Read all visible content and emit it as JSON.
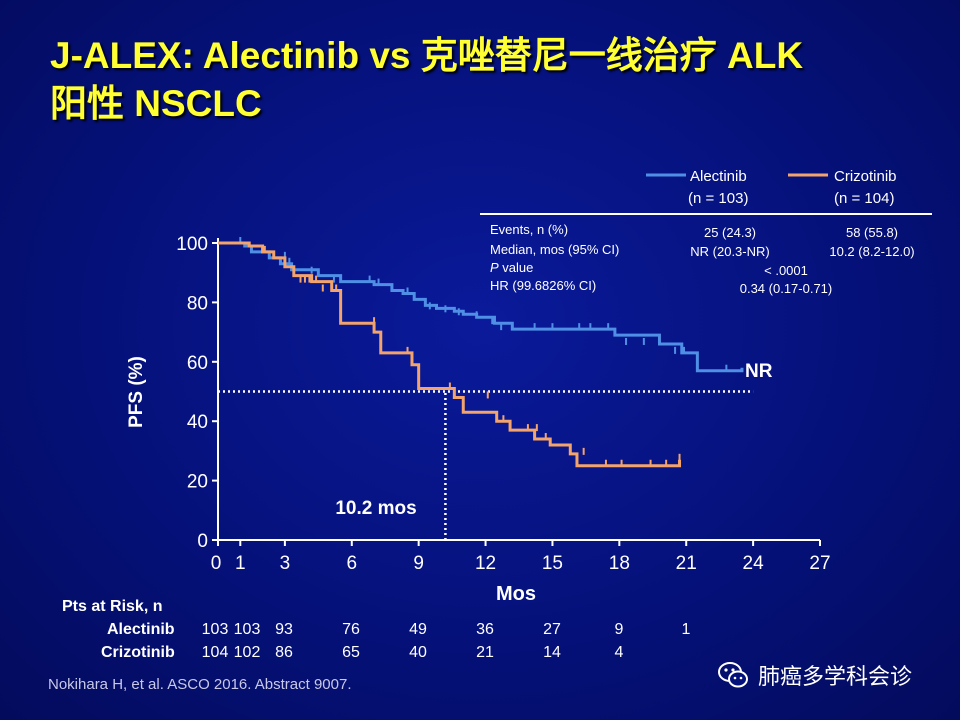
{
  "slide": {
    "title_line1": "J-ALEX: Alectinib vs 克唑替尼一线治疗 ALK",
    "title_line2": "阳性 NSCLC",
    "footer": "Nokihara H, et al. ASCO 2016. Abstract 9007.",
    "watermark": "肺癌多学科会诊",
    "watermark_icon": "wechat-icon"
  },
  "legend": {
    "alectinib": {
      "name": "Alectinib",
      "n": "(n = 103)"
    },
    "crizotinib": {
      "name": "Crizotinib",
      "n": "(n = 104)"
    }
  },
  "stats_table": {
    "rows": [
      {
        "label": "Events, n (%)",
        "alectinib": "25 (24.3)",
        "crizotinib": "58 (55.8)"
      },
      {
        "label": "Median, mos (95% CI)",
        "alectinib": "NR (20.3-NR)",
        "crizotinib": "10.2 (8.2-12.0)"
      },
      {
        "label_italic": "P",
        "label_rest": " value",
        "combined": "< .0001"
      },
      {
        "label": "HR (99.6826% CI)",
        "combined": "0.34 (0.17-0.71)"
      }
    ]
  },
  "annotations": {
    "nr_label": "NR",
    "median_label": "10.2 mos"
  },
  "risk_table": {
    "header": "Pts at Risk, n",
    "rows": [
      {
        "label": "Alectinib",
        "values": [
          "103",
          "103",
          "93",
          "76",
          "49",
          "36",
          "27",
          "9",
          "1"
        ]
      },
      {
        "label": "Crizotinib",
        "values": [
          "104",
          "102",
          "86",
          "65",
          "40",
          "21",
          "14",
          "4",
          ""
        ]
      }
    ]
  },
  "chart_data": {
    "type": "line",
    "title": "",
    "xlabel": "Mos",
    "ylabel": "PFS (%)",
    "xlim": [
      0,
      27
    ],
    "ylim": [
      0,
      100
    ],
    "xticks": [
      0,
      1,
      3,
      6,
      9,
      12,
      15,
      18,
      21,
      24,
      27
    ],
    "yticks": [
      0,
      20,
      40,
      60,
      80,
      100
    ],
    "grid": false,
    "legend_position": "top-right",
    "series": [
      {
        "name": "Alectinib",
        "color": "#4f8fe6",
        "x": [
          0,
          1.2,
          1.5,
          2.3,
          2.8,
          3.3,
          4.5,
          5.5,
          6.2,
          7.0,
          7.8,
          8.3,
          8.8,
          9.3,
          9.8,
          10.6,
          11.0,
          11.6,
          12.4,
          13.2,
          17.8,
          19.8,
          20.8,
          21.5,
          23.5
        ],
        "y": [
          100,
          99,
          97,
          95,
          93,
          91,
          89,
          87,
          87,
          86,
          84,
          83,
          81,
          79,
          78,
          77,
          76,
          75,
          73,
          71,
          69,
          66,
          63,
          57,
          58
        ],
        "censor_x": [
          1,
          3,
          3.2,
          4.2,
          5.2,
          6.8,
          7.2,
          8.5,
          9.5,
          10.2,
          10.8,
          11.6,
          12.3,
          12.7,
          14.2,
          15.0,
          16.2,
          16.7,
          17.5,
          18.3,
          19.1,
          20.5,
          20.9,
          22.8
        ],
        "censor_y": [
          100,
          95,
          93,
          90,
          87,
          87,
          86,
          83,
          78,
          77,
          76,
          75,
          73,
          71,
          71,
          71,
          71,
          71,
          71,
          66,
          66,
          63,
          63,
          57
        ]
      },
      {
        "name": "Crizotinib",
        "color": "#f3a36c",
        "x": [
          0,
          1.4,
          2.0,
          2.5,
          3.0,
          3.4,
          4.2,
          5.1,
          5.5,
          7.0,
          7.3,
          8.7,
          9.0,
          10.6,
          11.0,
          12.5,
          13.1,
          14.2,
          14.9,
          15.8,
          16.1,
          20.7
        ],
        "y": [
          100,
          99,
          97,
          95,
          92,
          89,
          87,
          84,
          73,
          70,
          63,
          59,
          51,
          48,
          43,
          40,
          37,
          34,
          32,
          29,
          25,
          27
        ],
        "censor_x": [
          2.1,
          3.7,
          3.9,
          4.1,
          4.4,
          4.7,
          5.3,
          7.0,
          8.5,
          10.4,
          12.1,
          12.8,
          13.9,
          14.3,
          14.7,
          16.4,
          17.4,
          18.1,
          19.4,
          20.1,
          20.7
        ],
        "censor_y": [
          97,
          87,
          87,
          87,
          87,
          84,
          84,
          73,
          63,
          51,
          48,
          40,
          37,
          37,
          34,
          29,
          25,
          25,
          25,
          25,
          27
        ]
      },
      {
        "name": "",
        "color": "#ffffff",
        "x": [
          0,
          24
        ],
        "y": [
          50,
          50
        ]
      },
      {
        "name": "",
        "color": "#ffffff",
        "x": [
          10.2,
          10.2
        ],
        "y": [
          0,
          50
        ]
      }
    ]
  }
}
